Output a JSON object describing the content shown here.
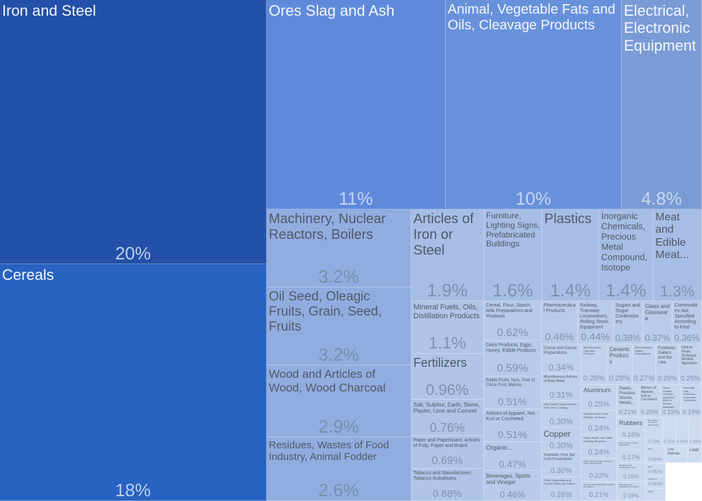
{
  "chart_data": {
    "type": "treemap",
    "title": "",
    "items": [
      {
        "label": "Iron and Steel",
        "value": "20%"
      },
      {
        "label": "Cereals",
        "value": "18%"
      },
      {
        "label": "Ores Slag and Ash",
        "value": "11%"
      },
      {
        "label": "Animal, Vegetable Fats and Oils, Cleavage Products",
        "value": "10%"
      },
      {
        "label": "Electrical, Electronic Equipment",
        "value": "4.8%"
      },
      {
        "label": "Machinery, Nuclear Reactors, Boilers",
        "value": "3.2%"
      },
      {
        "label": "Oil Seed, Oleagic Fruits, Grain, Seed, Fruits",
        "value": "3.2%"
      },
      {
        "label": "Wood and Articles of Wood, Wood Charcoal",
        "value": "2.9%"
      },
      {
        "label": "Residues, Wastes of Food Industry, Animal Fodder",
        "value": "2.6%"
      },
      {
        "label": "Articles of Iron or Steel",
        "value": "1.9%"
      },
      {
        "label": "Furniture, Lighting Signs, Prefabricated Buildings",
        "value": "1.6%"
      },
      {
        "label": "Plastics",
        "value": "1.4%"
      },
      {
        "label": "Inorganic Chemicals, Precious Metal Compound, Isotope",
        "value": "1.4%"
      },
      {
        "label": "Meat and Edible Meat...",
        "value": "1.3%"
      },
      {
        "label": "Mineral Fuels, Oils, Distillation Products",
        "value": "1.1%"
      },
      {
        "label": "Fertilizers",
        "value": "0.96%"
      },
      {
        "label": "Salt, Sulphur, Earth, Stone, Plaster, Lime and Cement",
        "value": "0.76%"
      },
      {
        "label": "Paper and Paperboard, Articles of Pulp, Paper and Board",
        "value": "0.69%"
      },
      {
        "label": "Tobacco and Manufactures Tobacco Substitutes",
        "value": "0.68%"
      },
      {
        "label": "Cereal, Flour, Starch, Milk Preparations and Products",
        "value": "0.62%"
      },
      {
        "label": "Dairy Products, Eggs, Honey, Edible Products",
        "value": "0.59%"
      },
      {
        "label": "Edible Fruits, Nuts, Peel of Citrus Fruit, Melons",
        "value": "0.51%"
      },
      {
        "label": "Articles of Apparel, Not Knit or Crocheted",
        "value": "0.51%"
      },
      {
        "label": "Organic...",
        "value": "0.47%"
      },
      {
        "label": "Beverages, Spirits and Vinegar",
        "value": "0.46%"
      },
      {
        "label": "Pharmaceutical Products",
        "value": "0.46%"
      },
      {
        "label": "Railway, Tramway Locomotives, Rolling Stock, Equipment",
        "value": "0.44%"
      },
      {
        "label": "Sugars and Sugar Confectionery",
        "value": "0.38%"
      },
      {
        "label": "Glass and Glassware",
        "value": "0.37%"
      },
      {
        "label": "Commodities Not Specified According to Kind",
        "value": "0.36%"
      },
      {
        "label": "Cocoa and Cocoa Preparations",
        "value": "0.34%"
      },
      {
        "label": "Miscellaneous Articles of Base Metal",
        "value": "0.31%"
      },
      {
        "label": "Other Made Textile Articles, Sets, Worn Clothing",
        "value": "0.30%"
      },
      {
        "label": "Copper",
        "value": "0.30%"
      },
      {
        "label": "Vegetable, Fruit, Nut Food Preparations",
        "value": "0.30%"
      },
      {
        "label": "Edible Vegetables and Certain Roots and Tubers",
        "value": "0.28%"
      },
      {
        "label": "Miscellaneous Chemical Products",
        "value": "0.28%"
      },
      {
        "label": "Ceramic Products",
        "value": "0.28%"
      },
      {
        "label": "Miscellaneous Edible Preparations",
        "value": "0.27%"
      },
      {
        "label": "Footwear, Gaiters and the Like,",
        "value": "0.26%"
      },
      {
        "label": "Optical, Photo, Technical, Medical Apparatus",
        "value": "0.25%"
      },
      {
        "label": "Aluminum",
        "value": "0.25%"
      },
      {
        "label": "Vehicles Other Than Railway, Tramway",
        "value": "0.24%"
      },
      {
        "label": "Ships, Boats, and Other Floating Structures",
        "value": "0.24%"
      },
      {
        "label": "Milling Products, Malt, Starches, Inulin, Wheat Gluten",
        "value": "0.22%"
      },
      {
        "label": "Tanning, Dyeing Extracts, Tannins, Derivatives,...",
        "value": "0.21%"
      },
      {
        "label": "Pearls, Precious Stones, Metals...",
        "value": "0.21%"
      },
      {
        "label": "Articles of Apparel, Knit or Crocheted",
        "value": "0.20%"
      },
      {
        "label": "Stone, Plaster, Cement, Asbestos, Mica or Similar Materials",
        "value": "0.19%"
      },
      {
        "label": "Essential Oils, Perfumes, Cosmetics, Toileteries",
        "value": "0.19%"
      },
      {
        "label": "Rubbers",
        "value": "0.18%"
      },
      {
        "label": "Toys, Games, Sports Requisites",
        "value": "0.17%"
      },
      {
        "label": "Washing, Felt, Nonwovens, Yarns,...",
        "value": "0.16%"
      },
      {
        "label": "Miscellaneous Manufactured Articles",
        "value": "0.16%"
      },
      {
        "label": "Raw Hides and Skins Other Than...",
        "value": "0.13%"
      },
      {
        "label": "Print...",
        "value": "0.094%"
      },
      {
        "label": "Knit...",
        "value": "0.092%"
      },
      {
        "label": "Articles of...",
        "value": "0.082%"
      },
      {
        "label": "Soaps...",
        "value": ""
      },
      {
        "label": "Live Animals",
        "value": ""
      },
      {
        "label": "Lead",
        "value": ""
      },
      {
        "label": "",
        "value": "0.11%"
      },
      {
        "label": "",
        "value": "0.11%"
      },
      {
        "label": "",
        "value": "0.10%"
      }
    ]
  }
}
